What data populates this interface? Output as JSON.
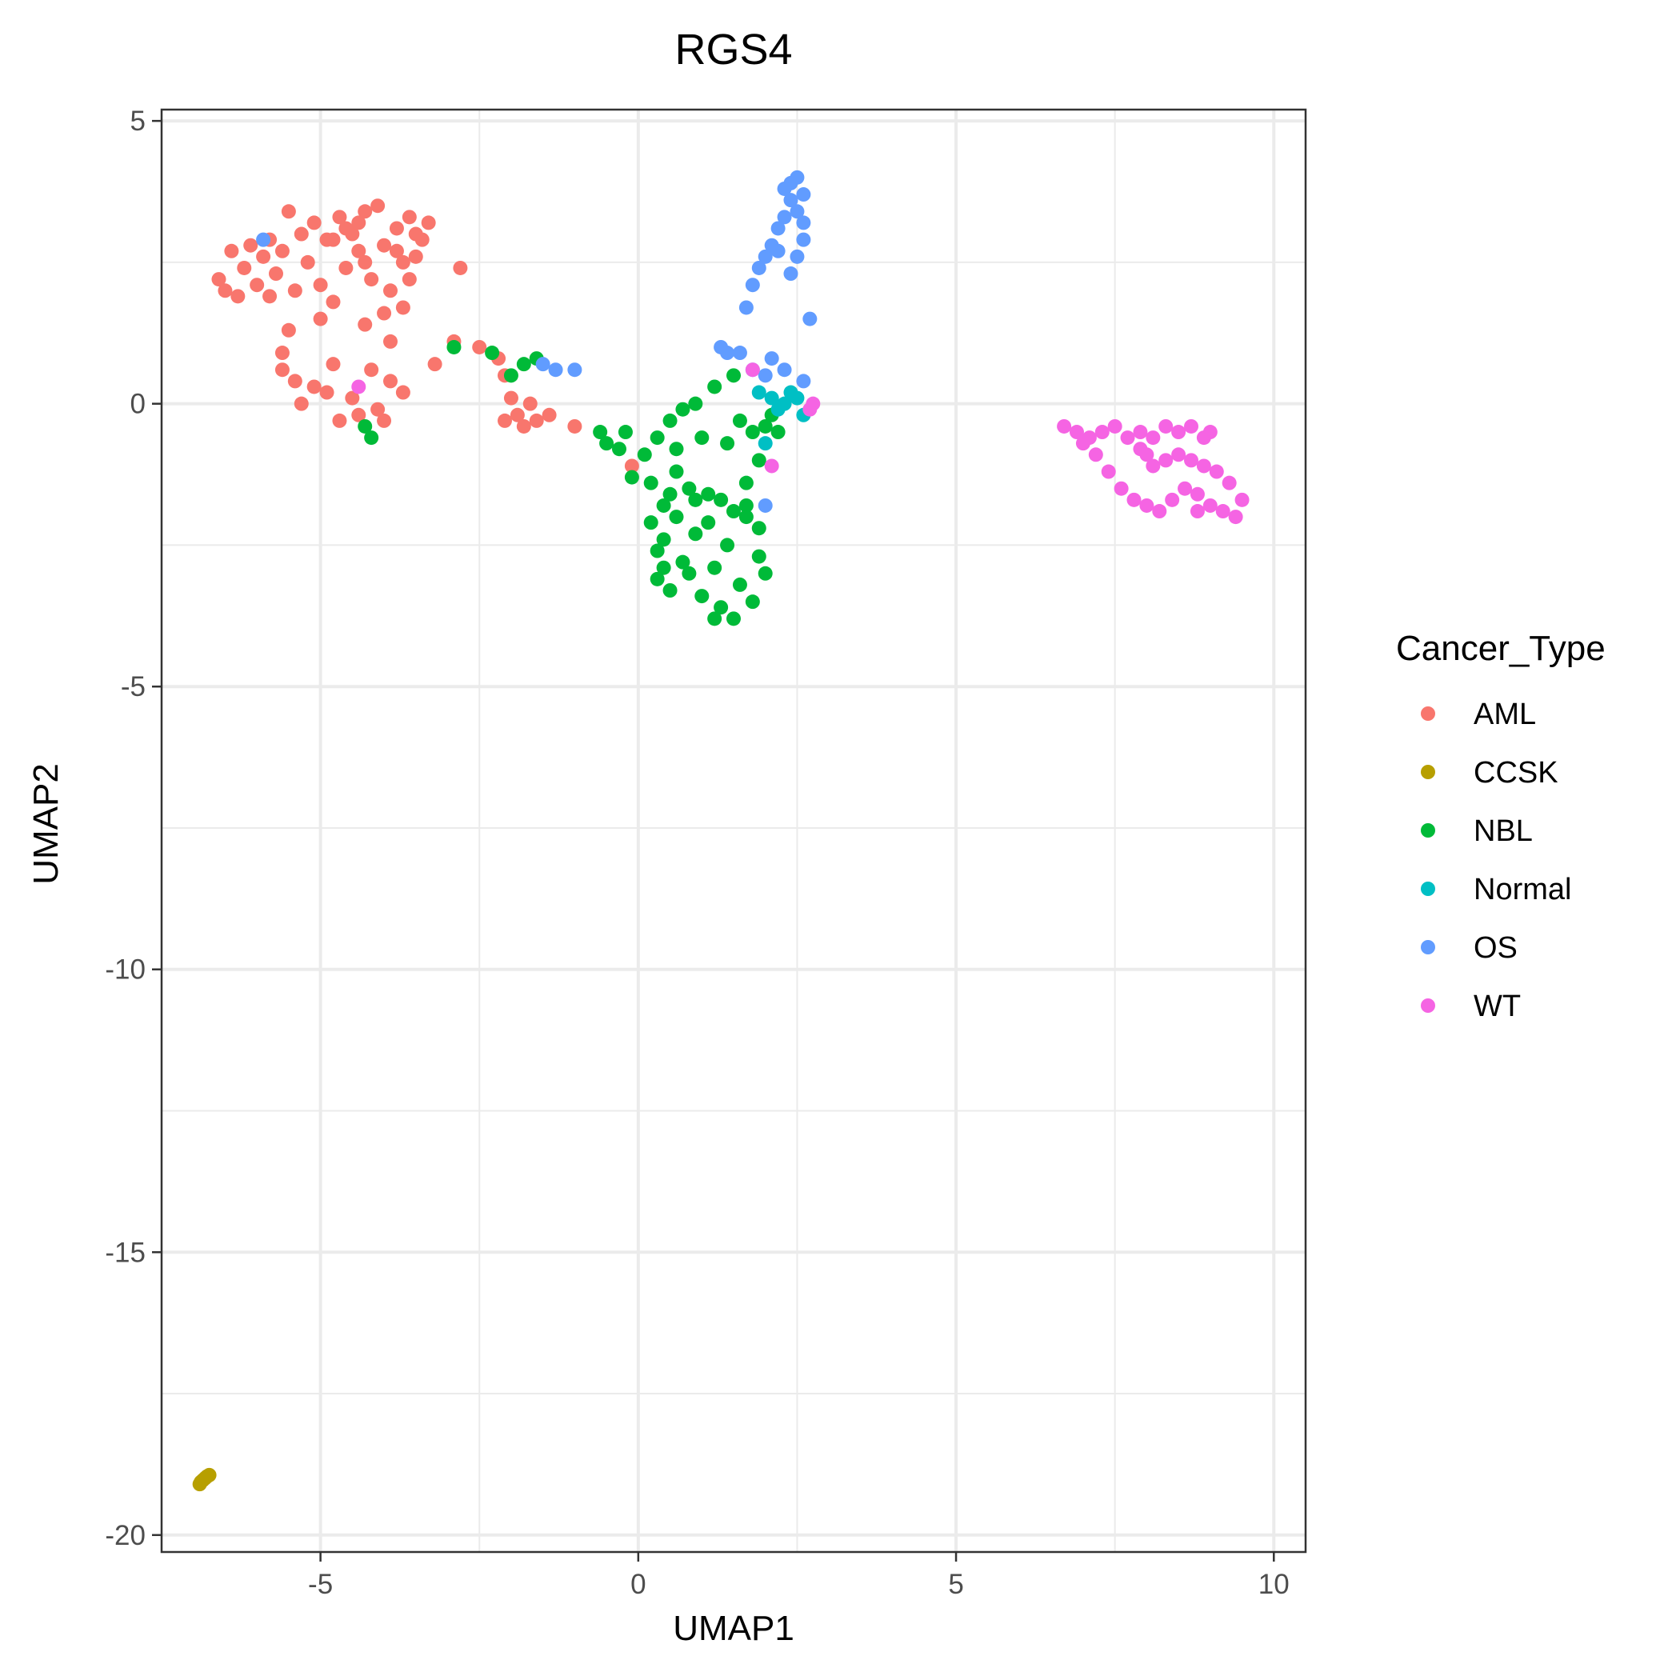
{
  "chart_data": {
    "type": "scatter",
    "title": "RGS4",
    "xlabel": "UMAP1",
    "ylabel": "UMAP2",
    "xlim": [
      -7.5,
      10.5
    ],
    "ylim": [
      -20.3,
      5.2
    ],
    "x_ticks": [
      -5,
      0,
      5,
      10
    ],
    "y_ticks": [
      5,
      0,
      -5,
      -10,
      -15,
      -20
    ],
    "grid": true,
    "legend": {
      "title": "Cancer_Type",
      "position": "right"
    },
    "series": [
      {
        "name": "AML",
        "color": "#F8766D",
        "points": [
          [
            -6.6,
            2.2
          ],
          [
            -6.5,
            2.0
          ],
          [
            -6.3,
            1.9
          ],
          [
            -6.2,
            2.4
          ],
          [
            -6.1,
            2.8
          ],
          [
            -6.0,
            2.1
          ],
          [
            -5.9,
            2.6
          ],
          [
            -5.8,
            1.9
          ],
          [
            -5.7,
            2.3
          ],
          [
            -5.6,
            2.7
          ],
          [
            -5.5,
            3.4
          ],
          [
            -5.4,
            2.0
          ],
          [
            -5.3,
            3.0
          ],
          [
            -5.2,
            2.5
          ],
          [
            -5.1,
            3.2
          ],
          [
            -5.0,
            2.1
          ],
          [
            -4.9,
            2.9
          ],
          [
            -4.8,
            1.8
          ],
          [
            -4.7,
            3.3
          ],
          [
            -4.6,
            2.4
          ],
          [
            -4.5,
            3.0
          ],
          [
            -4.4,
            2.7
          ],
          [
            -4.3,
            3.4
          ],
          [
            -4.2,
            2.2
          ],
          [
            -4.1,
            3.5
          ],
          [
            -4.0,
            2.8
          ],
          [
            -3.9,
            2.0
          ],
          [
            -3.8,
            3.1
          ],
          [
            -3.7,
            2.5
          ],
          [
            -3.6,
            3.3
          ],
          [
            -3.5,
            2.6
          ],
          [
            -3.4,
            2.9
          ],
          [
            -3.3,
            3.2
          ],
          [
            -4.0,
            1.6
          ],
          [
            -3.7,
            1.7
          ],
          [
            -3.9,
            1.1
          ],
          [
            -4.3,
            1.4
          ],
          [
            -5.0,
            1.5
          ],
          [
            -5.5,
            1.3
          ],
          [
            -5.6,
            0.9
          ],
          [
            -5.4,
            0.4
          ],
          [
            -5.1,
            0.3
          ],
          [
            -4.9,
            0.2
          ],
          [
            -4.8,
            0.7
          ],
          [
            -4.5,
            0.1
          ],
          [
            -4.4,
            -0.2
          ],
          [
            -4.2,
            0.6
          ],
          [
            -4.1,
            -0.1
          ],
          [
            -3.9,
            0.4
          ],
          [
            -3.7,
            0.2
          ],
          [
            -5.3,
            0.0
          ],
          [
            -4.7,
            -0.3
          ],
          [
            -4.0,
            -0.3
          ],
          [
            -5.6,
            0.6
          ],
          [
            -5.8,
            2.9
          ],
          [
            -6.4,
            2.7
          ],
          [
            -2.8,
            2.4
          ],
          [
            -2.9,
            1.1
          ],
          [
            -3.2,
            0.7
          ],
          [
            -2.5,
            1.0
          ],
          [
            -2.2,
            0.8
          ],
          [
            -2.1,
            0.5
          ],
          [
            -2.0,
            0.1
          ],
          [
            -1.9,
            -0.2
          ],
          [
            -1.8,
            -0.4
          ],
          [
            -1.7,
            0.0
          ],
          [
            -1.6,
            -0.3
          ],
          [
            -2.1,
            -0.3
          ],
          [
            -1.4,
            -0.2
          ],
          [
            -1.0,
            -0.4
          ],
          [
            -0.1,
            -1.1
          ],
          [
            -4.6,
            3.1
          ],
          [
            -4.3,
            2.5
          ],
          [
            -4.8,
            2.9
          ],
          [
            -3.6,
            2.2
          ],
          [
            -3.8,
            2.7
          ],
          [
            -4.4,
            3.2
          ],
          [
            -3.5,
            3.0
          ]
        ]
      },
      {
        "name": "CCSK",
        "color": "#B79F00",
        "points": [
          [
            -6.9,
            -19.1
          ],
          [
            -6.88,
            -19.06
          ],
          [
            -6.85,
            -19.03
          ],
          [
            -6.82,
            -19.0
          ],
          [
            -6.8,
            -18.98
          ],
          [
            -6.78,
            -18.96
          ],
          [
            -6.75,
            -18.94
          ]
        ]
      },
      {
        "name": "NBL",
        "color": "#00BA38",
        "points": [
          [
            -4.3,
            -0.4
          ],
          [
            -4.2,
            -0.6
          ],
          [
            -2.9,
            1.0
          ],
          [
            -2.3,
            0.9
          ],
          [
            -2.0,
            0.5
          ],
          [
            -1.8,
            0.7
          ],
          [
            -1.6,
            0.8
          ],
          [
            -0.6,
            -0.5
          ],
          [
            -0.5,
            -0.7
          ],
          [
            -0.3,
            -0.8
          ],
          [
            -0.2,
            -0.5
          ],
          [
            -0.1,
            -1.3
          ],
          [
            0.1,
            -0.9
          ],
          [
            0.2,
            -1.4
          ],
          [
            0.3,
            -0.6
          ],
          [
            0.4,
            -1.8
          ],
          [
            0.5,
            -0.3
          ],
          [
            0.6,
            -0.8
          ],
          [
            0.7,
            -0.1
          ],
          [
            0.8,
            -1.5
          ],
          [
            0.9,
            0.0
          ],
          [
            1.0,
            -0.6
          ],
          [
            1.1,
            -1.6
          ],
          [
            1.2,
            0.3
          ],
          [
            1.3,
            -1.7
          ],
          [
            1.4,
            -0.7
          ],
          [
            1.5,
            0.5
          ],
          [
            1.6,
            -0.3
          ],
          [
            1.7,
            -1.4
          ],
          [
            1.8,
            -0.5
          ],
          [
            1.9,
            -1.0
          ],
          [
            2.0,
            -0.4
          ],
          [
            2.1,
            -0.2
          ],
          [
            2.2,
            -0.5
          ],
          [
            0.2,
            -2.1
          ],
          [
            0.3,
            -2.6
          ],
          [
            0.3,
            -3.1
          ],
          [
            0.4,
            -2.4
          ],
          [
            0.5,
            -3.3
          ],
          [
            0.6,
            -2.0
          ],
          [
            0.7,
            -2.8
          ],
          [
            0.8,
            -3.0
          ],
          [
            0.9,
            -2.3
          ],
          [
            1.0,
            -3.4
          ],
          [
            1.1,
            -2.1
          ],
          [
            1.2,
            -2.9
          ],
          [
            1.3,
            -3.6
          ],
          [
            1.4,
            -2.5
          ],
          [
            1.5,
            -3.8
          ],
          [
            1.6,
            -3.2
          ],
          [
            1.7,
            -2.0
          ],
          [
            1.8,
            -3.5
          ],
          [
            1.9,
            -2.7
          ],
          [
            2.0,
            -3.0
          ],
          [
            1.7,
            -1.8
          ],
          [
            1.5,
            -1.9
          ],
          [
            0.5,
            -1.6
          ],
          [
            0.9,
            -1.7
          ],
          [
            0.4,
            -2.9
          ],
          [
            1.2,
            -3.8
          ],
          [
            1.9,
            -2.2
          ],
          [
            0.6,
            -1.2
          ]
        ]
      },
      {
        "name": "Normal",
        "color": "#00BFC4",
        "points": [
          [
            2.1,
            0.1
          ],
          [
            2.2,
            -0.1
          ],
          [
            2.4,
            0.2
          ],
          [
            2.6,
            -0.2
          ],
          [
            1.9,
            0.2
          ],
          [
            2.3,
            0.0
          ],
          [
            2.0,
            -0.7
          ],
          [
            2.5,
            0.1
          ]
        ]
      },
      {
        "name": "OS",
        "color": "#619CFF",
        "points": [
          [
            -5.9,
            2.9
          ],
          [
            -1.5,
            0.7
          ],
          [
            -1.3,
            0.6
          ],
          [
            -1.0,
            0.6
          ],
          [
            1.3,
            1.0
          ],
          [
            1.4,
            0.9
          ],
          [
            1.6,
            0.9
          ],
          [
            1.8,
            0.6
          ],
          [
            2.0,
            0.5
          ],
          [
            2.1,
            0.8
          ],
          [
            2.3,
            0.6
          ],
          [
            2.6,
            0.4
          ],
          [
            2.0,
            -1.8
          ],
          [
            1.7,
            1.7
          ],
          [
            1.8,
            2.1
          ],
          [
            1.9,
            2.4
          ],
          [
            2.0,
            2.6
          ],
          [
            2.1,
            2.8
          ],
          [
            2.2,
            3.1
          ],
          [
            2.3,
            3.3
          ],
          [
            2.4,
            3.6
          ],
          [
            2.4,
            3.9
          ],
          [
            2.5,
            4.0
          ],
          [
            2.6,
            3.7
          ],
          [
            2.6,
            3.2
          ],
          [
            2.5,
            2.6
          ],
          [
            2.4,
            2.3
          ],
          [
            2.7,
            1.5
          ],
          [
            2.5,
            3.4
          ],
          [
            2.3,
            3.8
          ],
          [
            2.6,
            2.9
          ],
          [
            2.2,
            2.7
          ]
        ]
      },
      {
        "name": "WT",
        "color": "#F564E3",
        "points": [
          [
            -4.4,
            0.3
          ],
          [
            1.8,
            0.6
          ],
          [
            2.1,
            -1.1
          ],
          [
            2.7,
            -0.1
          ],
          [
            2.75,
            0.0
          ],
          [
            6.7,
            -0.4
          ],
          [
            6.9,
            -0.5
          ],
          [
            7.1,
            -0.6
          ],
          [
            7.3,
            -0.5
          ],
          [
            7.5,
            -0.4
          ],
          [
            7.7,
            -0.6
          ],
          [
            7.9,
            -0.5
          ],
          [
            8.1,
            -0.6
          ],
          [
            8.3,
            -0.4
          ],
          [
            8.5,
            -0.5
          ],
          [
            8.7,
            -0.4
          ],
          [
            8.9,
            -0.6
          ],
          [
            9.0,
            -0.5
          ],
          [
            7.2,
            -0.9
          ],
          [
            7.4,
            -1.2
          ],
          [
            7.6,
            -1.5
          ],
          [
            7.8,
            -1.7
          ],
          [
            8.0,
            -1.8
          ],
          [
            8.2,
            -1.9
          ],
          [
            8.4,
            -1.7
          ],
          [
            8.6,
            -1.5
          ],
          [
            8.8,
            -1.6
          ],
          [
            9.0,
            -1.8
          ],
          [
            9.2,
            -1.9
          ],
          [
            9.4,
            -2.0
          ],
          [
            9.5,
            -1.7
          ],
          [
            9.3,
            -1.4
          ],
          [
            9.1,
            -1.2
          ],
          [
            8.9,
            -1.1
          ],
          [
            8.7,
            -1.0
          ],
          [
            8.5,
            -0.9
          ],
          [
            8.3,
            -1.0
          ],
          [
            8.1,
            -1.1
          ],
          [
            7.9,
            -0.8
          ],
          [
            7.0,
            -0.7
          ],
          [
            8.8,
            -1.9
          ],
          [
            8.0,
            -0.9
          ]
        ]
      }
    ]
  }
}
